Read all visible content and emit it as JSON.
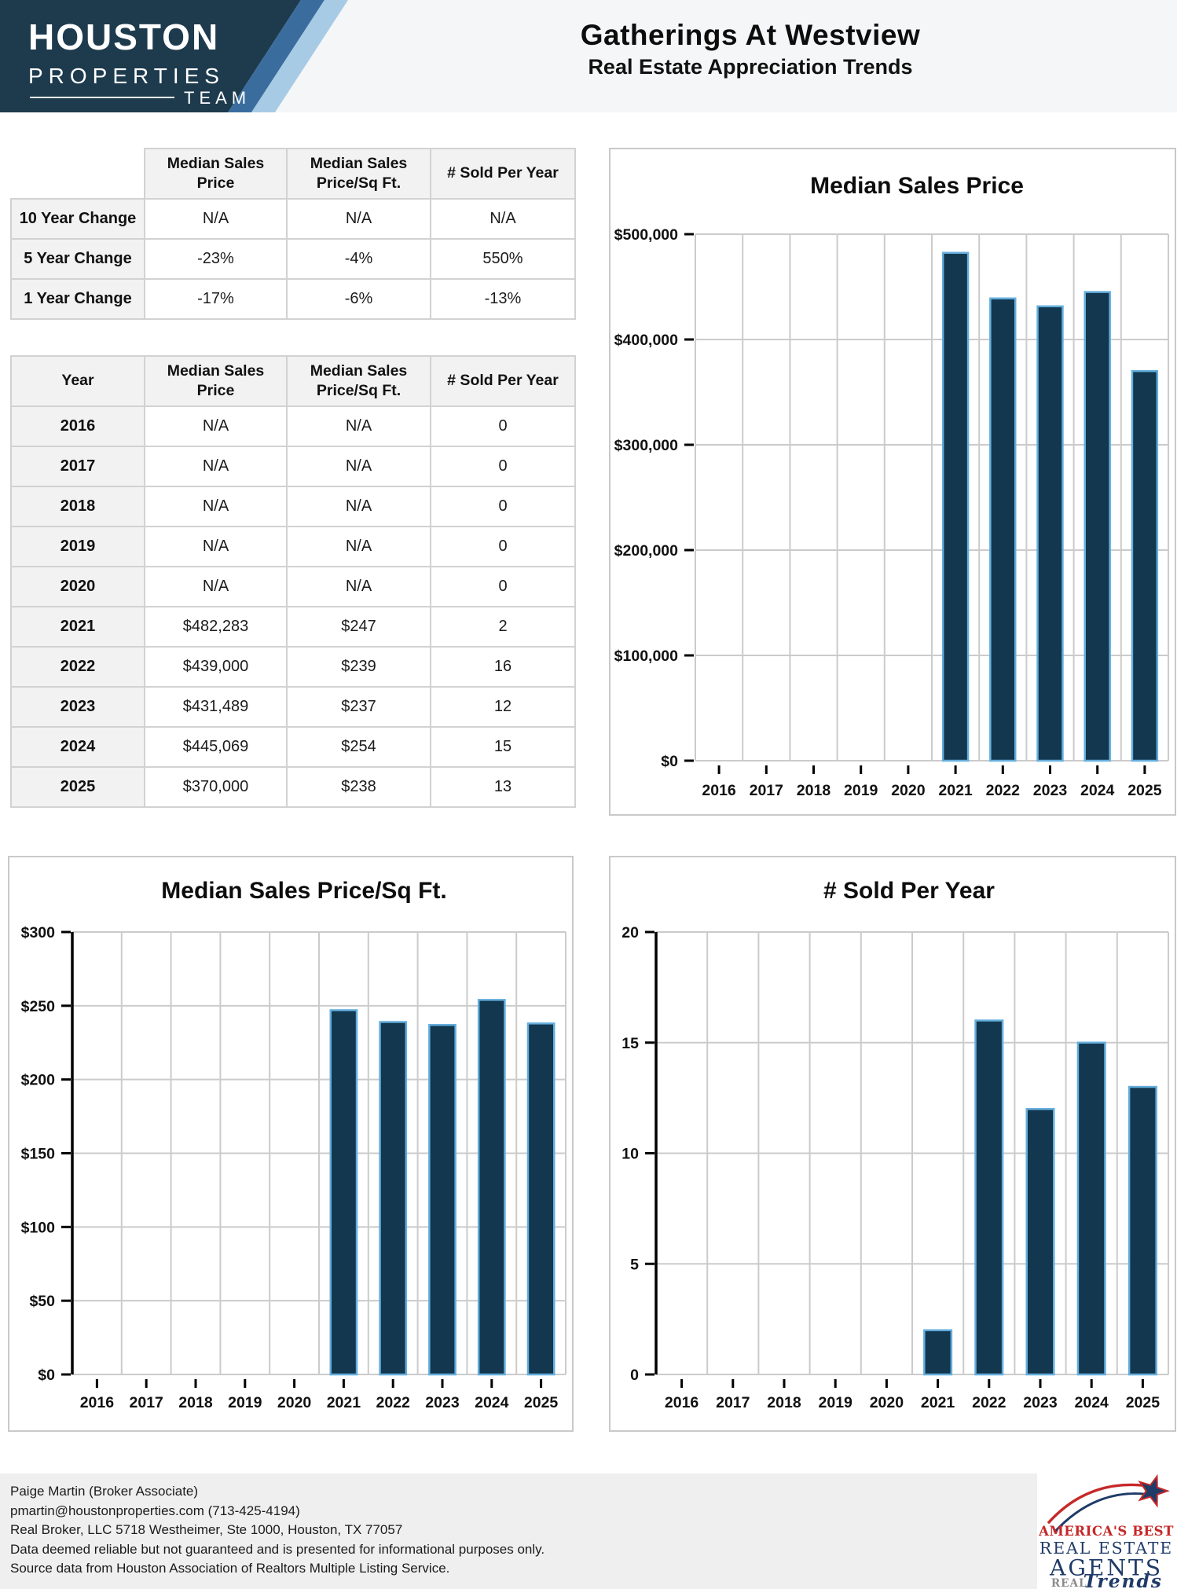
{
  "header": {
    "logo": {
      "line1": "HOUSTON",
      "line2": "PROPERTIES",
      "line3": "TEAM"
    },
    "title": "Gatherings At Westview",
    "subtitle": "Real Estate Appreciation Trends"
  },
  "summary_table": {
    "col_headers": [
      "Median Sales Price",
      "Median Sales Price/Sq Ft.",
      "# Sold Per Year"
    ],
    "rows": [
      {
        "label": "10 Year Change",
        "values": [
          "N/A",
          "N/A",
          "N/A"
        ]
      },
      {
        "label": "5 Year Change",
        "values": [
          "-23%",
          "-4%",
          "550%"
        ]
      },
      {
        "label": "1 Year Change",
        "values": [
          "-17%",
          "-6%",
          "-13%"
        ]
      }
    ]
  },
  "yearly_table": {
    "col_headers": [
      "Year",
      "Median Sales Price",
      "Median Sales Price/Sq Ft.",
      "# Sold Per Year"
    ],
    "rows": [
      [
        "2016",
        "N/A",
        "N/A",
        "0"
      ],
      [
        "2017",
        "N/A",
        "N/A",
        "0"
      ],
      [
        "2018",
        "N/A",
        "N/A",
        "0"
      ],
      [
        "2019",
        "N/A",
        "N/A",
        "0"
      ],
      [
        "2020",
        "N/A",
        "N/A",
        "0"
      ],
      [
        "2021",
        "$482,283",
        "$247",
        "2"
      ],
      [
        "2022",
        "$439,000",
        "$239",
        "16"
      ],
      [
        "2023",
        "$431,489",
        "$237",
        "12"
      ],
      [
        "2024",
        "$445,069",
        "$254",
        "15"
      ],
      [
        "2025",
        "$370,000",
        "$238",
        "13"
      ]
    ]
  },
  "chart_data": [
    {
      "type": "bar",
      "title": "Median Sales Price",
      "categories": [
        "2016",
        "2017",
        "2018",
        "2019",
        "2020",
        "2021",
        "2022",
        "2023",
        "2024",
        "2025"
      ],
      "values": [
        null,
        null,
        null,
        null,
        null,
        482283,
        439000,
        431489,
        445069,
        370000
      ],
      "xlabel": "",
      "ylabel": "",
      "ylim": [
        0,
        500000
      ],
      "yticks": [
        0,
        100000,
        200000,
        300000,
        400000,
        500000
      ],
      "ytick_labels": [
        "$0",
        "$100,000",
        "$200,000",
        "$300,000",
        "$400,000",
        "$500,000"
      ],
      "grid": true,
      "legend": "none",
      "y_axis_line": false
    },
    {
      "type": "bar",
      "title": "Median Sales Price/Sq Ft.",
      "categories": [
        "2016",
        "2017",
        "2018",
        "2019",
        "2020",
        "2021",
        "2022",
        "2023",
        "2024",
        "2025"
      ],
      "values": [
        null,
        null,
        null,
        null,
        null,
        247,
        239,
        237,
        254,
        238
      ],
      "xlabel": "",
      "ylabel": "",
      "ylim": [
        0,
        300
      ],
      "yticks": [
        0,
        50,
        100,
        150,
        200,
        250,
        300
      ],
      "ytick_labels": [
        "$0",
        "$50",
        "$100",
        "$150",
        "$200",
        "$250",
        "$300"
      ],
      "grid": true,
      "legend": "none",
      "y_axis_line": true
    },
    {
      "type": "bar",
      "title": "# Sold Per Year",
      "categories": [
        "2016",
        "2017",
        "2018",
        "2019",
        "2020",
        "2021",
        "2022",
        "2023",
        "2024",
        "2025"
      ],
      "values": [
        0,
        0,
        0,
        0,
        0,
        2,
        16,
        12,
        15,
        13
      ],
      "xlabel": "",
      "ylabel": "",
      "ylim": [
        0,
        20
      ],
      "yticks": [
        0,
        5,
        10,
        15,
        20
      ],
      "ytick_labels": [
        "0",
        "5",
        "10",
        "15",
        "20"
      ],
      "grid": true,
      "legend": "none",
      "y_axis_line": true
    }
  ],
  "footer": {
    "lines": [
      "Paige Martin (Broker Associate)",
      "pmartin@houstonproperties.com (713-425-4194)",
      "Real Broker, LLC 5718 Westheimer, Ste 1000, Houston, TX 77057",
      "Data deemed reliable but not guaranteed and is presented for informational purposes only.",
      "Source data from Houston Association of Realtors Multiple Listing Service."
    ]
  },
  "badge": {
    "top": "AMERICA'S BEST",
    "mid": "REAL ESTATE",
    "main": "AGENTS",
    "brand_left": "REAL",
    "brand_right": "Trends"
  },
  "colors": {
    "bar_fill": "#12374e",
    "bar_stroke": "#64aedd",
    "grid": "#cbcbcb",
    "axis": "#000000",
    "panel_border": "#c9c9c9",
    "logo_navy": "#1e3b4e",
    "logo_mid_blue": "#3a6d9e",
    "logo_light_blue": "#a8cbe5",
    "badge_red": "#c62828",
    "badge_navy": "#1f3b68",
    "badge_gray": "#8b8b8b"
  }
}
